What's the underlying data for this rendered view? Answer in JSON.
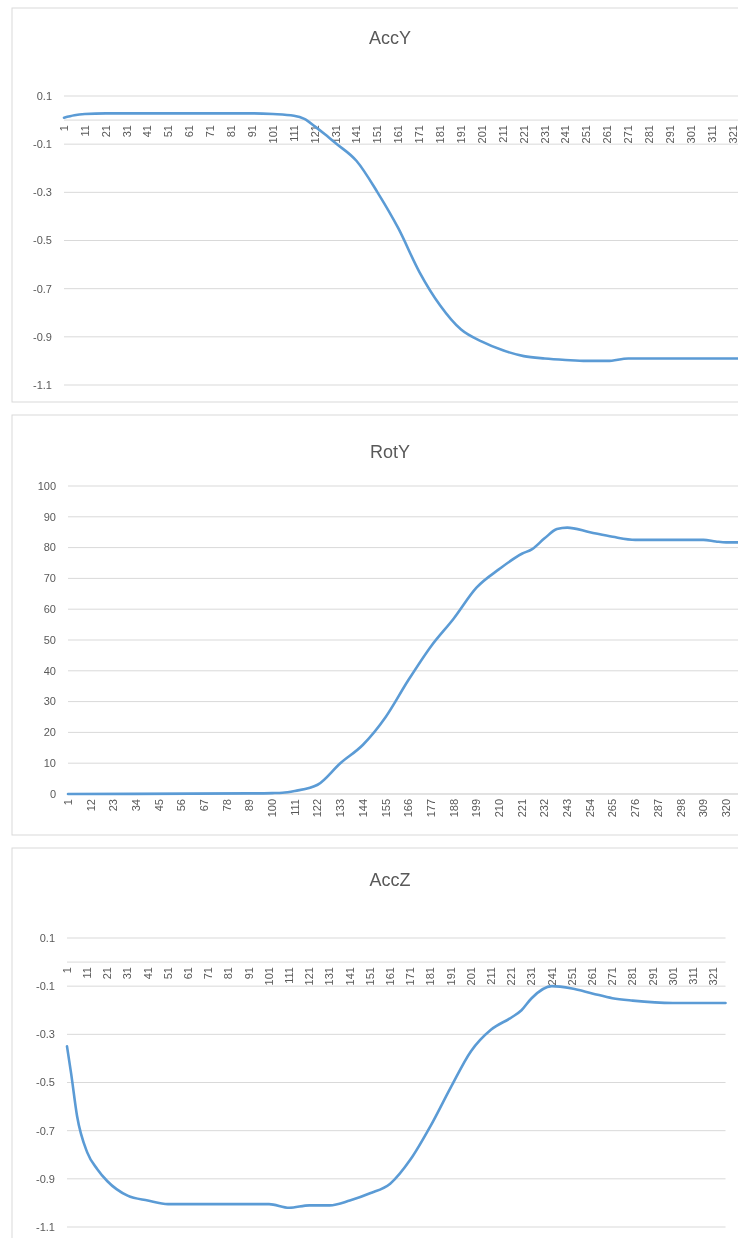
{
  "chart_data": [
    {
      "type": "line",
      "title": "AccY",
      "grid": "y",
      "marker": "none",
      "line_style": "solid",
      "x": [
        1,
        6,
        11,
        21,
        51,
        91,
        101,
        111,
        116,
        121,
        126,
        131,
        141,
        151,
        161,
        171,
        181,
        191,
        201,
        211,
        221,
        231,
        241,
        251,
        261,
        271,
        301,
        327
      ],
      "xlim": [
        1,
        327
      ],
      "xticks": [
        1,
        11,
        21,
        31,
        41,
        51,
        61,
        71,
        81,
        91,
        101,
        111,
        121,
        131,
        141,
        151,
        161,
        171,
        181,
        191,
        201,
        211,
        221,
        231,
        241,
        251,
        261,
        271,
        281,
        291,
        301,
        311,
        321
      ],
      "ylim": [
        -1.1,
        0.1
      ],
      "yticks": [
        0.1,
        -0.1,
        -0.3,
        -0.5,
        -0.7,
        -0.9,
        -1.1
      ],
      "series": [
        {
          "color": "#5b9bd5",
          "values": [
            0.01,
            0.02,
            0.025,
            0.028,
            0.028,
            0.028,
            0.025,
            0.018,
            0.005,
            -0.026,
            -0.06,
            -0.096,
            -0.17,
            -0.3,
            -0.45,
            -0.63,
            -0.77,
            -0.87,
            -0.92,
            -0.956,
            -0.98,
            -0.99,
            -0.996,
            -1.0,
            -1.0,
            -0.99,
            -0.99,
            -0.99
          ]
        }
      ]
    },
    {
      "type": "line",
      "title": "RotY",
      "grid": "y",
      "marker": "none",
      "line_style": "solid",
      "x": [
        1,
        89,
        100,
        105,
        111,
        122,
        133,
        144,
        155,
        166,
        177,
        188,
        199,
        210,
        221,
        226,
        232,
        238,
        243,
        254,
        265,
        276,
        287,
        309,
        315,
        320,
        327
      ],
      "xlim": [
        1,
        327
      ],
      "xticks": [
        1,
        12,
        23,
        34,
        45,
        56,
        67,
        78,
        89,
        100,
        111,
        122,
        133,
        144,
        155,
        166,
        177,
        188,
        199,
        210,
        221,
        232,
        243,
        254,
        265,
        276,
        287,
        298,
        309,
        320
      ],
      "ylim": [
        0,
        100
      ],
      "yticks": [
        0,
        10,
        20,
        30,
        40,
        50,
        60,
        70,
        80,
        90,
        100
      ],
      "series": [
        {
          "color": "#5b9bd5",
          "values": [
            0,
            0.2,
            0.3,
            0.4,
            1,
            3,
            10,
            16,
            25,
            37,
            48,
            57,
            67,
            73,
            78,
            79.5,
            83,
            86,
            86.5,
            85,
            83.5,
            82.5,
            82.5,
            82.5,
            82,
            81.7,
            81.7
          ]
        }
      ]
    },
    {
      "type": "line",
      "title": "AccZ",
      "grid": "y",
      "marker": "none",
      "line_style": "solid",
      "x": [
        1,
        3,
        6,
        11,
        16,
        21,
        31,
        41,
        51,
        101,
        111,
        121,
        131,
        141,
        151,
        161,
        171,
        181,
        191,
        201,
        211,
        221,
        226,
        231,
        241,
        251,
        261,
        271,
        281,
        301,
        321,
        327
      ],
      "xlim": [
        1,
        327
      ],
      "xticks": [
        1,
        11,
        21,
        31,
        41,
        51,
        61,
        71,
        81,
        91,
        101,
        111,
        121,
        131,
        141,
        151,
        161,
        171,
        181,
        191,
        201,
        211,
        221,
        231,
        241,
        251,
        261,
        271,
        281,
        291,
        301,
        311,
        321
      ],
      "ylim": [
        -1.1,
        0.1
      ],
      "yticks": [
        0.1,
        -0.1,
        -0.3,
        -0.5,
        -0.7,
        -0.9,
        -1.1
      ],
      "series": [
        {
          "color": "#5b9bd5",
          "values": [
            -0.35,
            -0.46,
            -0.64,
            -0.79,
            -0.86,
            -0.91,
            -0.97,
            -0.99,
            -1.005,
            -1.005,
            -1.02,
            -1.01,
            -1.01,
            -0.99,
            -0.96,
            -0.92,
            -0.82,
            -0.68,
            -0.52,
            -0.37,
            -0.28,
            -0.23,
            -0.2,
            -0.15,
            -0.1,
            -0.11,
            -0.13,
            -0.15,
            -0.16,
            -0.17,
            -0.17,
            -0.17
          ]
        }
      ]
    }
  ]
}
